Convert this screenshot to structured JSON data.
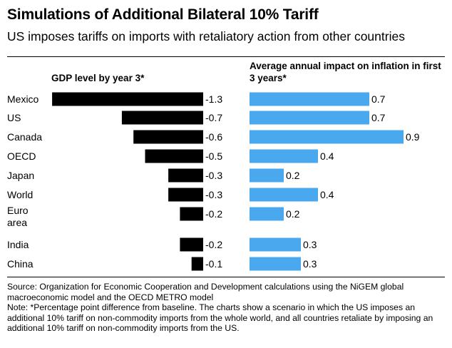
{
  "chart_data": {
    "type": "bar",
    "orientation": "horizontal",
    "title": "Simulations of Additional Bilateral 10% Tariff",
    "subtitle": "US imposes tariffs on imports with retaliatory action from other countries",
    "categories": [
      "Mexico",
      "US",
      "Canada",
      "OECD",
      "Japan",
      "World",
      "Euro area",
      "India",
      "China"
    ],
    "panels": [
      {
        "title": "GDP level by year 3*",
        "values": [
          -1.3,
          -0.7,
          -0.6,
          -0.5,
          -0.3,
          -0.3,
          -0.2,
          -0.2,
          -0.1
        ],
        "labels": [
          "-1.3",
          "-0.7",
          "-0.6",
          "-0.5",
          "-0.3",
          "-0.3",
          "-0.2",
          "-0.2",
          "-0.1"
        ],
        "color": "#000000"
      },
      {
        "title": "Average annual impact on inflation in first 3 years*",
        "values": [
          0.7,
          0.7,
          0.9,
          0.4,
          0.2,
          0.4,
          0.2,
          0.3,
          0.3
        ],
        "labels": [
          "0.7",
          "0.7",
          "0.9",
          "0.4",
          "0.2",
          "0.4",
          "0.2",
          "0.3",
          "0.3"
        ],
        "color": "#4aa8ef"
      }
    ]
  },
  "footer": {
    "source": "Source: Organization for Economic Cooperation and Development calculations using the NiGEM global macroeconomic model and the OECD METRO model",
    "note": "Note: *Percentage point difference from baseline. The charts show a scenario in which the US imposes an additional 10% tariff on non-commodity imports from the whole world, and all countries retaliate by imposing an additional 10% tariff on non-commodity imports from the US."
  }
}
